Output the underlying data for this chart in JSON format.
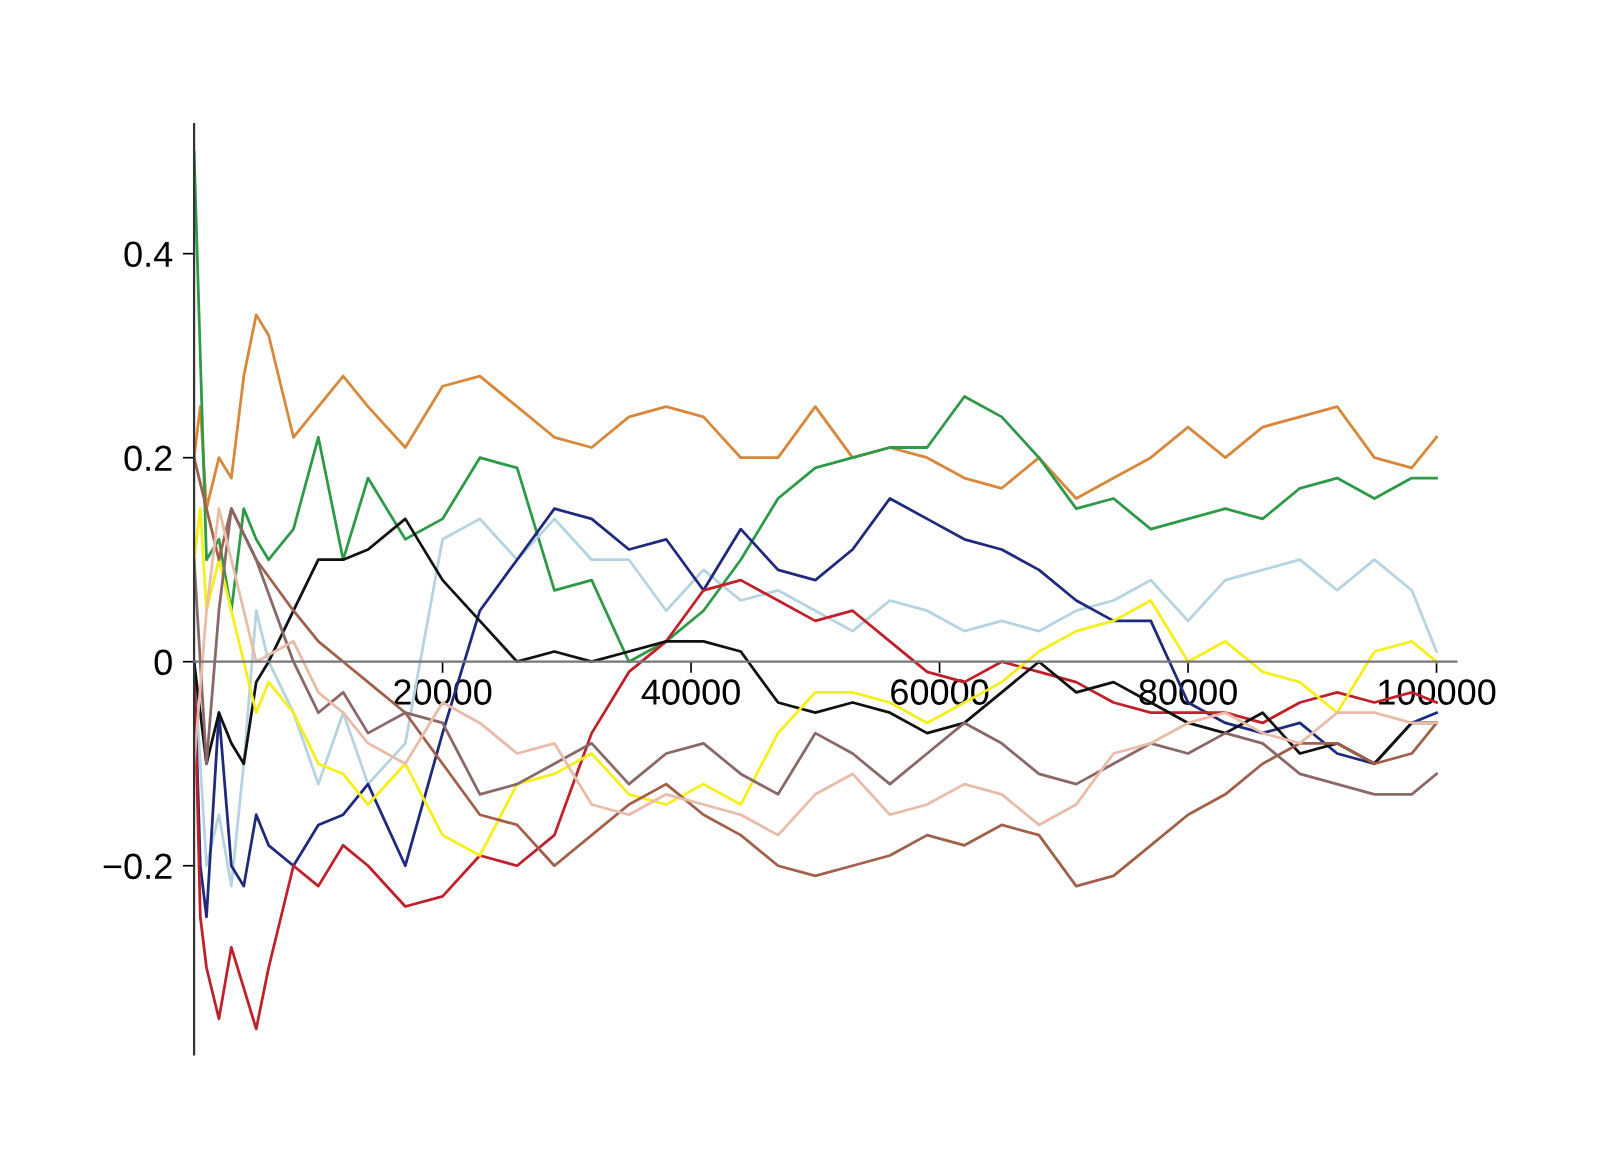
{
  "chart_data": {
    "type": "line",
    "xlim": [
      0,
      101600
    ],
    "ylim": [
      -0.385,
      0.527
    ],
    "xticks": [
      20000,
      40000,
      60000,
      80000,
      100000
    ],
    "yticks": [
      {
        "value": -0.2,
        "label": "−0.2"
      },
      0,
      0.2,
      0.4
    ],
    "grid": false,
    "legend": false,
    "series": [
      {
        "color": "#d8883a",
        "x": [
          0,
          500,
          1000,
          2000,
          3000,
          4000,
          5000,
          6000,
          8000,
          10000,
          12000,
          14000,
          17000,
          20000,
          23000,
          26000,
          29000,
          32000,
          35000,
          38000,
          41000,
          44000,
          47000,
          50000,
          53000,
          56000,
          59000,
          62000,
          65000,
          68000,
          71000,
          74000,
          77000,
          80000,
          83000,
          86000,
          89000,
          92000,
          95000,
          98000,
          100000
        ],
        "values": [
          0.2,
          0.25,
          0.15,
          0.2,
          0.18,
          0.28,
          0.34,
          0.32,
          0.22,
          0.25,
          0.28,
          0.25,
          0.21,
          0.27,
          0.28,
          0.25,
          0.22,
          0.21,
          0.24,
          0.25,
          0.24,
          0.2,
          0.2,
          0.25,
          0.2,
          0.21,
          0.2,
          0.18,
          0.17,
          0.2,
          0.16,
          0.18,
          0.2,
          0.23,
          0.2,
          0.23,
          0.24,
          0.25,
          0.2,
          0.19,
          0.22
        ]
      },
      {
        "color": "#2e9a48",
        "x": [
          0,
          500,
          1000,
          2000,
          3000,
          4000,
          5000,
          6000,
          8000,
          10000,
          12000,
          14000,
          17000,
          20000,
          23000,
          26000,
          29000,
          32000,
          35000,
          38000,
          41000,
          44000,
          47000,
          50000,
          53000,
          56000,
          59000,
          62000,
          65000,
          68000,
          71000,
          74000,
          77000,
          80000,
          83000,
          86000,
          89000,
          92000,
          95000,
          98000,
          100000
        ],
        "values": [
          0.5,
          0.3,
          0.1,
          0.12,
          0.05,
          0.15,
          0.12,
          0.1,
          0.13,
          0.22,
          0.1,
          0.18,
          0.12,
          0.14,
          0.2,
          0.19,
          0.07,
          0.08,
          0.0,
          0.02,
          0.05,
          0.1,
          0.16,
          0.19,
          0.2,
          0.21,
          0.21,
          0.26,
          0.24,
          0.2,
          0.15,
          0.16,
          0.13,
          0.14,
          0.15,
          0.14,
          0.17,
          0.18,
          0.16,
          0.18,
          0.18
        ]
      },
      {
        "color": "#b5d3e0",
        "x": [
          0,
          500,
          1000,
          2000,
          3000,
          4000,
          5000,
          6000,
          8000,
          10000,
          12000,
          14000,
          17000,
          20000,
          23000,
          26000,
          29000,
          32000,
          35000,
          38000,
          41000,
          44000,
          47000,
          50000,
          53000,
          56000,
          59000,
          62000,
          65000,
          68000,
          71000,
          74000,
          77000,
          80000,
          83000,
          86000,
          89000,
          92000,
          95000,
          98000,
          100000
        ],
        "values": [
          0.0,
          -0.1,
          -0.2,
          -0.15,
          -0.22,
          -0.1,
          0.05,
          0.0,
          -0.05,
          -0.12,
          -0.05,
          -0.12,
          -0.08,
          0.12,
          0.14,
          0.1,
          0.14,
          0.1,
          0.1,
          0.05,
          0.09,
          0.06,
          0.07,
          0.05,
          0.03,
          0.06,
          0.05,
          0.03,
          0.04,
          0.03,
          0.05,
          0.06,
          0.08,
          0.04,
          0.08,
          0.09,
          0.1,
          0.07,
          0.1,
          0.07,
          0.01
        ]
      },
      {
        "color": "#1f2a7c",
        "x": [
          0,
          500,
          1000,
          2000,
          3000,
          4000,
          5000,
          6000,
          8000,
          10000,
          12000,
          14000,
          17000,
          20000,
          23000,
          26000,
          29000,
          32000,
          35000,
          38000,
          41000,
          44000,
          47000,
          50000,
          53000,
          56000,
          59000,
          62000,
          65000,
          68000,
          71000,
          74000,
          77000,
          80000,
          83000,
          86000,
          89000,
          92000,
          95000,
          98000,
          100000
        ],
        "values": [
          0.0,
          -0.2,
          -0.25,
          -0.05,
          -0.2,
          -0.22,
          -0.15,
          -0.18,
          -0.2,
          -0.16,
          -0.15,
          -0.12,
          -0.2,
          -0.07,
          0.05,
          0.1,
          0.15,
          0.14,
          0.11,
          0.12,
          0.07,
          0.13,
          0.09,
          0.08,
          0.11,
          0.16,
          0.14,
          0.12,
          0.11,
          0.09,
          0.06,
          0.04,
          0.04,
          -0.04,
          -0.06,
          -0.07,
          -0.06,
          -0.09,
          -0.1,
          -0.06,
          -0.05
        ]
      },
      {
        "color": "#c0202a",
        "x": [
          0,
          500,
          1000,
          2000,
          3000,
          4000,
          5000,
          6000,
          8000,
          10000,
          12000,
          14000,
          17000,
          20000,
          23000,
          26000,
          29000,
          32000,
          35000,
          38000,
          41000,
          44000,
          47000,
          50000,
          53000,
          56000,
          59000,
          62000,
          65000,
          68000,
          71000,
          74000,
          77000,
          80000,
          83000,
          86000,
          89000,
          92000,
          95000,
          98000,
          100000
        ],
        "values": [
          0.0,
          -0.25,
          -0.3,
          -0.35,
          -0.28,
          -0.32,
          -0.36,
          -0.3,
          -0.2,
          -0.22,
          -0.18,
          -0.2,
          -0.24,
          -0.23,
          -0.19,
          -0.2,
          -0.17,
          -0.07,
          -0.01,
          0.02,
          0.07,
          0.08,
          0.06,
          0.04,
          0.05,
          0.02,
          -0.01,
          -0.02,
          0.0,
          -0.01,
          -0.02,
          -0.04,
          -0.05,
          -0.05,
          -0.05,
          -0.06,
          -0.04,
          -0.03,
          -0.04,
          -0.03,
          -0.04
        ]
      },
      {
        "color": "#111111",
        "x": [
          0,
          500,
          1000,
          2000,
          3000,
          4000,
          5000,
          6000,
          8000,
          10000,
          12000,
          14000,
          17000,
          20000,
          23000,
          26000,
          29000,
          32000,
          35000,
          38000,
          41000,
          44000,
          47000,
          50000,
          53000,
          56000,
          59000,
          62000,
          65000,
          68000,
          71000,
          74000,
          77000,
          80000,
          83000,
          86000,
          89000,
          92000,
          95000,
          98000,
          100000
        ],
        "values": [
          0.0,
          -0.05,
          -0.1,
          -0.05,
          -0.08,
          -0.1,
          -0.02,
          0.0,
          0.05,
          0.1,
          0.1,
          0.11,
          0.14,
          0.08,
          0.04,
          0.0,
          0.01,
          0.0,
          0.01,
          0.02,
          0.02,
          0.01,
          -0.04,
          -0.05,
          -0.04,
          -0.05,
          -0.07,
          -0.06,
          -0.03,
          0.0,
          -0.03,
          -0.02,
          -0.04,
          -0.06,
          -0.07,
          -0.05,
          -0.09,
          -0.08,
          -0.1,
          -0.06,
          -0.06
        ]
      },
      {
        "color": "#f5ef1a",
        "x": [
          0,
          500,
          1000,
          2000,
          3000,
          4000,
          5000,
          6000,
          8000,
          10000,
          12000,
          14000,
          17000,
          20000,
          23000,
          26000,
          29000,
          32000,
          35000,
          38000,
          41000,
          44000,
          47000,
          50000,
          53000,
          56000,
          59000,
          62000,
          65000,
          68000,
          71000,
          74000,
          77000,
          80000,
          83000,
          86000,
          89000,
          92000,
          95000,
          98000,
          100000
        ],
        "values": [
          0.1,
          0.15,
          0.05,
          0.1,
          0.05,
          0.0,
          -0.05,
          -0.02,
          -0.05,
          -0.1,
          -0.11,
          -0.14,
          -0.1,
          -0.17,
          -0.19,
          -0.12,
          -0.11,
          -0.09,
          -0.13,
          -0.14,
          -0.12,
          -0.14,
          -0.07,
          -0.03,
          -0.03,
          -0.04,
          -0.06,
          -0.04,
          -0.02,
          0.01,
          0.03,
          0.04,
          0.06,
          0.0,
          0.02,
          -0.01,
          -0.02,
          -0.05,
          0.01,
          0.02,
          0.0
        ]
      },
      {
        "color": "#a0604a",
        "x": [
          0,
          1000,
          2000,
          3000,
          5000,
          8000,
          10000,
          12000,
          14000,
          17000,
          20000,
          23000,
          26000,
          29000,
          32000,
          35000,
          38000,
          41000,
          44000,
          47000,
          50000,
          53000,
          56000,
          59000,
          62000,
          65000,
          68000,
          71000,
          74000,
          77000,
          80000,
          83000,
          86000,
          89000,
          92000,
          95000,
          98000,
          100000
        ],
        "values": [
          0.2,
          0.15,
          0.1,
          0.15,
          0.1,
          0.05,
          0.02,
          0.0,
          -0.02,
          -0.05,
          -0.1,
          -0.15,
          -0.16,
          -0.2,
          -0.17,
          -0.14,
          -0.12,
          -0.15,
          -0.17,
          -0.2,
          -0.21,
          -0.2,
          -0.19,
          -0.17,
          -0.18,
          -0.16,
          -0.17,
          -0.22,
          -0.21,
          -0.18,
          -0.15,
          -0.13,
          -0.1,
          -0.08,
          -0.08,
          -0.1,
          -0.09,
          -0.06
        ]
      },
      {
        "color": "#8a6868",
        "x": [
          0,
          1000,
          2000,
          3000,
          5000,
          8000,
          10000,
          12000,
          14000,
          17000,
          20000,
          23000,
          26000,
          29000,
          32000,
          35000,
          38000,
          41000,
          44000,
          47000,
          50000,
          53000,
          56000,
          59000,
          62000,
          65000,
          68000,
          71000,
          74000,
          77000,
          80000,
          83000,
          86000,
          89000,
          92000,
          95000,
          98000,
          100000
        ],
        "values": [
          0.1,
          -0.1,
          0.05,
          0.15,
          0.1,
          0.0,
          -0.05,
          -0.03,
          -0.07,
          -0.05,
          -0.06,
          -0.13,
          -0.12,
          -0.1,
          -0.08,
          -0.12,
          -0.09,
          -0.08,
          -0.11,
          -0.13,
          -0.07,
          -0.09,
          -0.12,
          -0.09,
          -0.06,
          -0.08,
          -0.11,
          -0.12,
          -0.1,
          -0.08,
          -0.09,
          -0.07,
          -0.08,
          -0.11,
          -0.12,
          -0.13,
          -0.13,
          -0.11
        ]
      },
      {
        "color": "#e8bca8",
        "x": [
          0,
          1000,
          2000,
          3000,
          5000,
          8000,
          10000,
          12000,
          14000,
          17000,
          20000,
          23000,
          26000,
          29000,
          32000,
          35000,
          38000,
          41000,
          44000,
          47000,
          50000,
          53000,
          56000,
          59000,
          62000,
          65000,
          68000,
          71000,
          74000,
          77000,
          80000,
          83000,
          86000,
          89000,
          92000,
          95000,
          98000,
          100000
        ],
        "values": [
          -0.1,
          0.05,
          0.15,
          0.1,
          0.0,
          0.02,
          -0.03,
          -0.05,
          -0.08,
          -0.1,
          -0.04,
          -0.06,
          -0.09,
          -0.08,
          -0.14,
          -0.15,
          -0.13,
          -0.14,
          -0.15,
          -0.17,
          -0.13,
          -0.11,
          -0.15,
          -0.14,
          -0.12,
          -0.13,
          -0.16,
          -0.14,
          -0.09,
          -0.08,
          -0.06,
          -0.05,
          -0.07,
          -0.08,
          -0.05,
          -0.05,
          -0.06,
          -0.06
        ]
      }
    ]
  }
}
